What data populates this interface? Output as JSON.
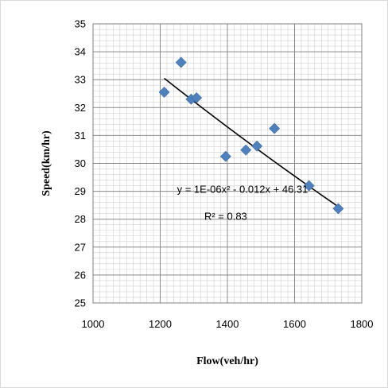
{
  "chart_data": {
    "type": "scatter",
    "title": "",
    "xlabel": "Flow(veh/hr)",
    "ylabel": "Speed(km/hr)",
    "xlim": [
      1000,
      1800
    ],
    "ylim": [
      25,
      35
    ],
    "x_ticks": [
      1000,
      1200,
      1400,
      1600,
      1800
    ],
    "y_ticks": [
      25,
      26,
      27,
      28,
      29,
      30,
      31,
      32,
      33,
      34,
      35
    ],
    "x_tick_labels": [
      "1000",
      "1200",
      "1400",
      "1600",
      "1800"
    ],
    "y_tick_labels": [
      "25",
      "26",
      "27",
      "28",
      "29",
      "30",
      "31",
      "32",
      "33",
      "34",
      "35"
    ],
    "grid": true,
    "legend": "none",
    "series": [
      {
        "marker": "diamond",
        "color": "#4f81bd",
        "points": [
          {
            "x": 1212,
            "y": 32.55
          },
          {
            "x": 1262,
            "y": 33.62
          },
          {
            "x": 1292,
            "y": 32.3
          },
          {
            "x": 1308,
            "y": 32.35
          },
          {
            "x": 1395,
            "y": 30.25
          },
          {
            "x": 1455,
            "y": 30.48
          },
          {
            "x": 1488,
            "y": 30.62
          },
          {
            "x": 1540,
            "y": 31.25
          },
          {
            "x": 1643,
            "y": 29.2
          },
          {
            "x": 1730,
            "y": 28.38
          }
        ]
      }
    ],
    "trendline": {
      "type": "polynomial",
      "color": "#000000",
      "x_range": [
        1212,
        1730
      ],
      "y_start": 33.05,
      "y_end": 28.45,
      "equation": "y = 1E-06x² - 0.012x + 46.31",
      "r_squared": "R² = 0.83"
    }
  }
}
